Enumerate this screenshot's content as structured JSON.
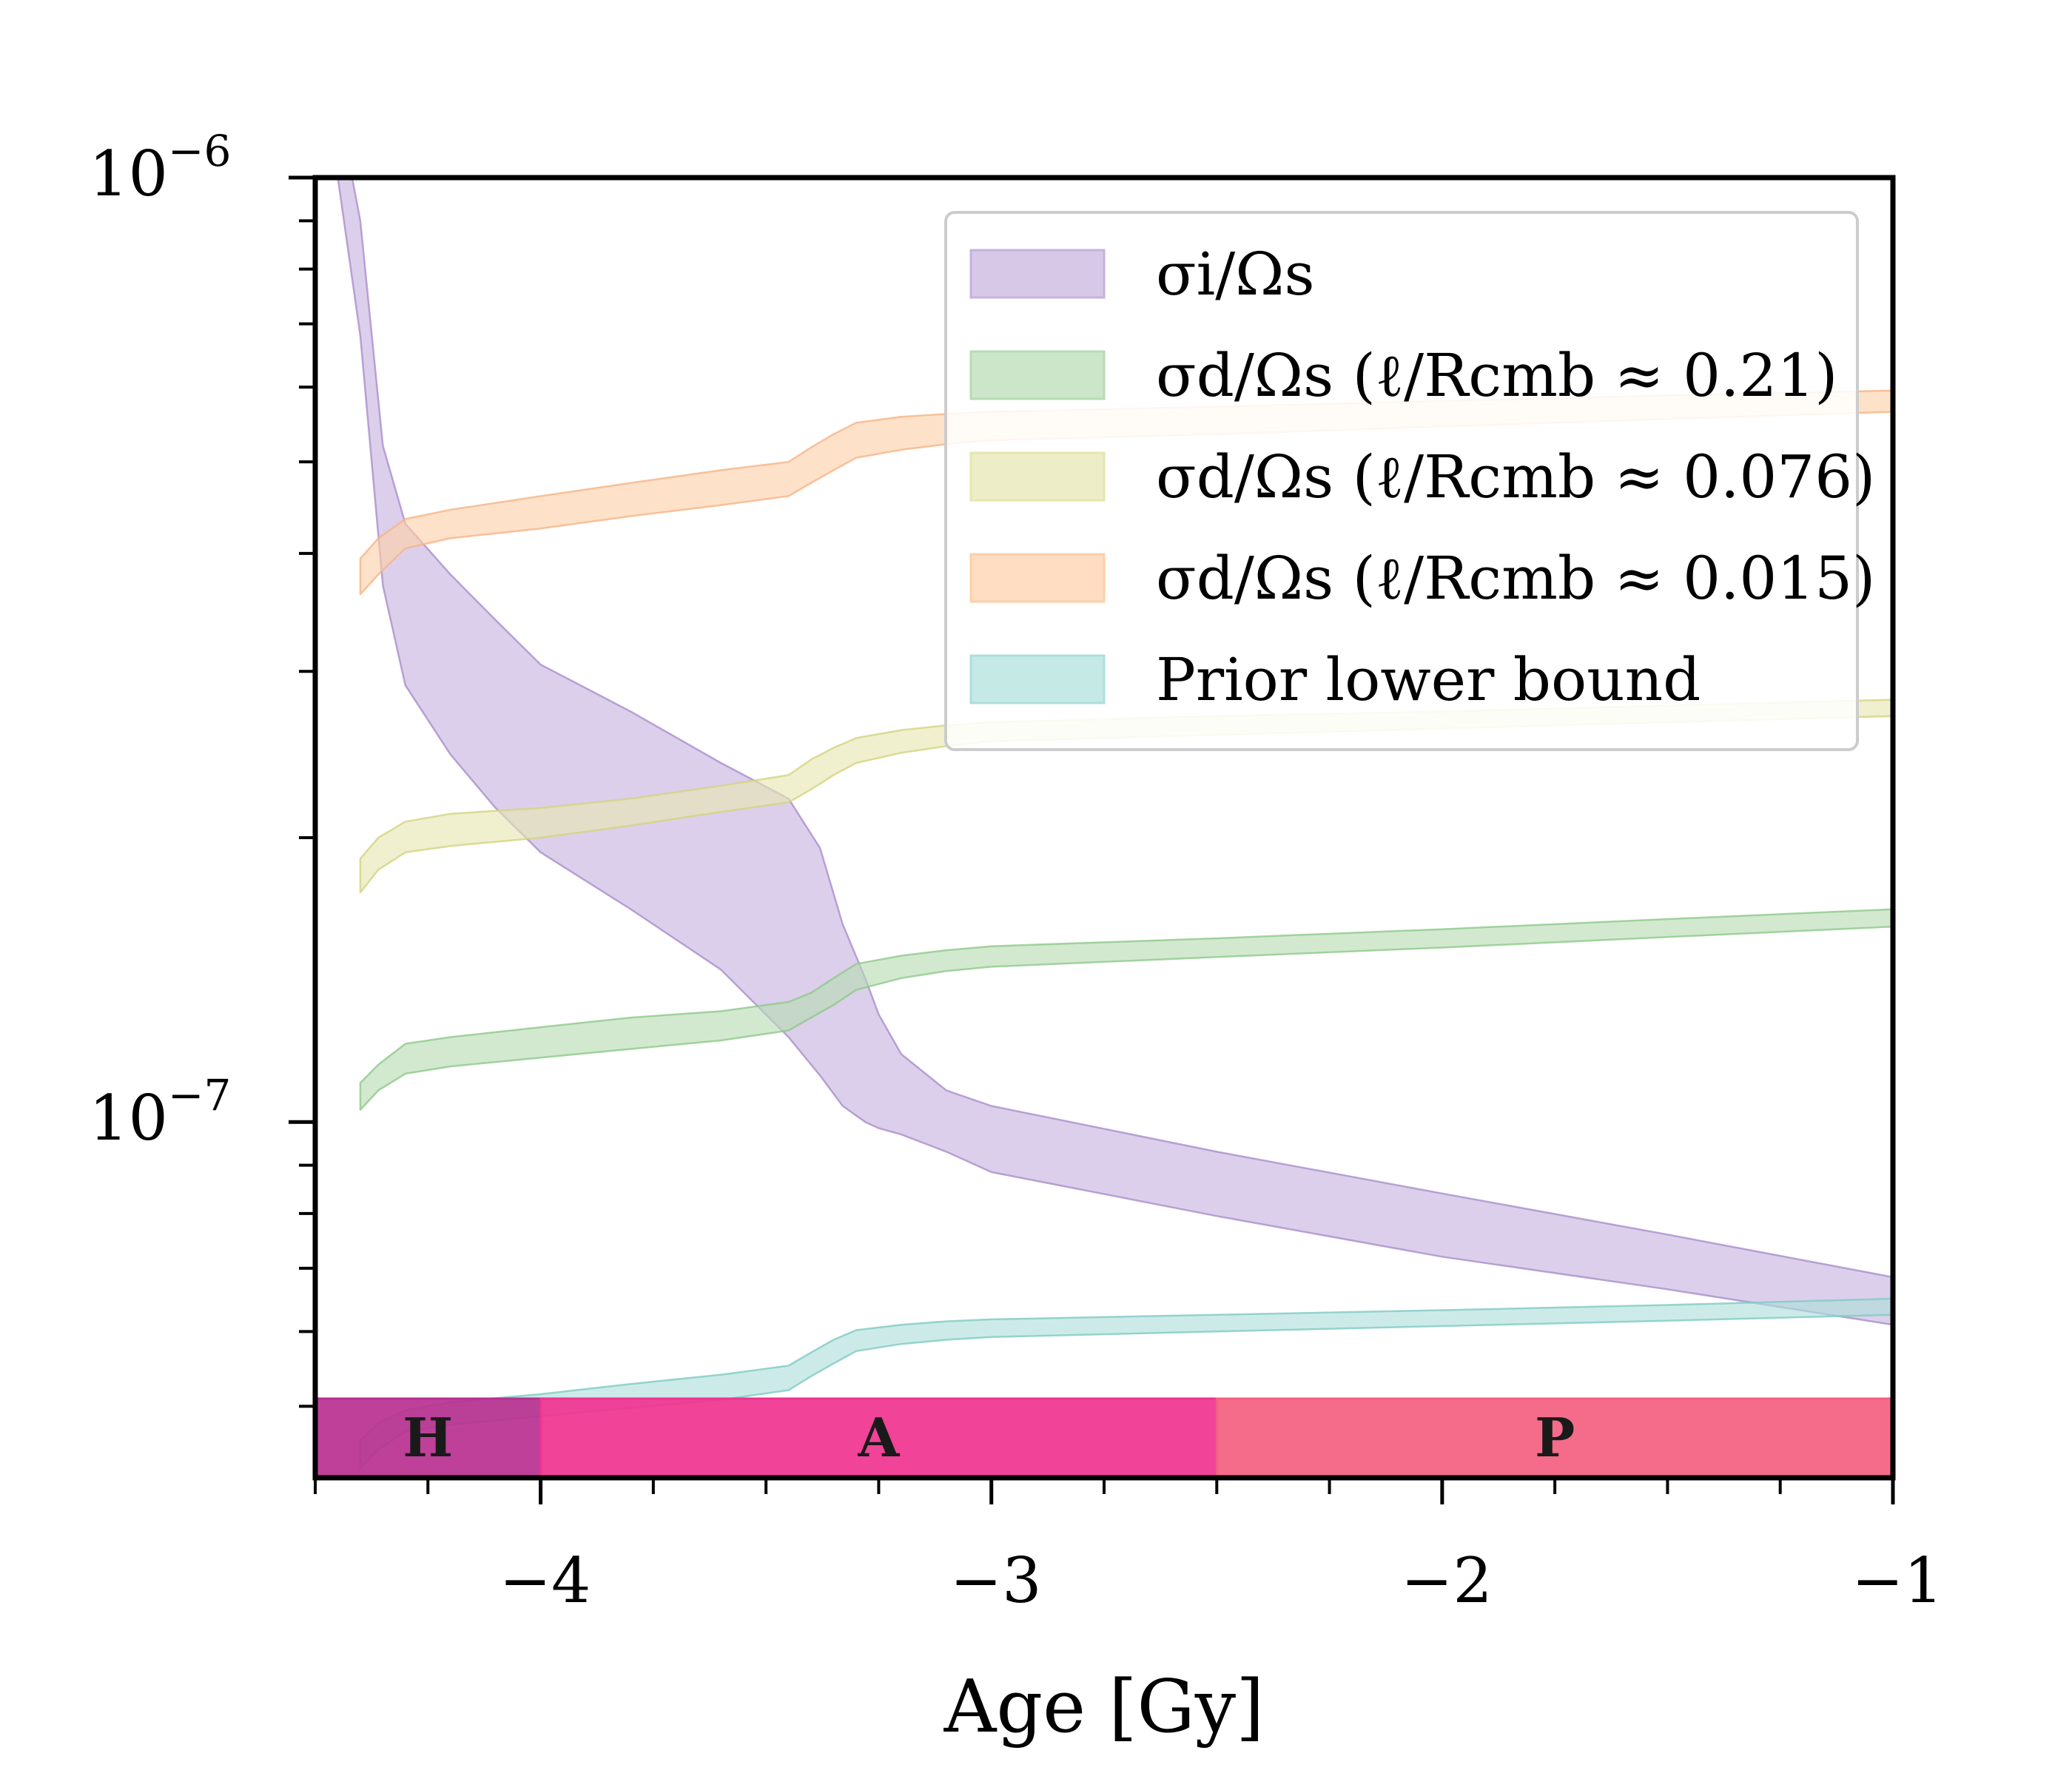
{
  "chart_data": {
    "type": "area",
    "title": "",
    "xlabel": "Age [Gy]",
    "ylabel": "",
    "xscale": "linear",
    "yscale": "log",
    "xlim": [
      -4.5,
      -1.0
    ],
    "ylim": [
      4.2e-08,
      1e-06
    ],
    "grid": false,
    "xticks": [
      {
        "value": -4,
        "label": "−4"
      },
      {
        "value": -3,
        "label": "−3"
      },
      {
        "value": -2,
        "label": "−2"
      },
      {
        "value": -1,
        "label": "−1"
      }
    ],
    "yticks": [
      {
        "value": 1e-06,
        "base": "10",
        "exp": "−6"
      },
      {
        "value": 1e-07,
        "base": "10",
        "exp": "−7"
      }
    ],
    "legend": {
      "position": "top-right",
      "entries": [
        {
          "label": "σi/Ωs",
          "color": "#c7b1de"
        },
        {
          "label": "σd/Ωs (ℓ/Rcmb ≈ 0.21)",
          "color": "#b6dcb3"
        },
        {
          "label": "σd/Ωs (ℓ/Rcmb ≈ 0.076)",
          "color": "#e6e6b1"
        },
        {
          "label": "σd/Ωs (ℓ/Rcmb ≈ 0.015)",
          "color": "#fdcfa8"
        },
        {
          "label": "Prior lower bound",
          "color": "#addfda"
        }
      ]
    },
    "series": [
      {
        "name": "σi/Ωs",
        "color": "#c7b1de",
        "edge": "#a98fcc",
        "x": [
          -4.49,
          -4.45,
          -4.4,
          -4.35,
          -4.3,
          -4.2,
          -4.1,
          -4.0,
          -3.8,
          -3.6,
          -3.45,
          -3.38,
          -3.33,
          -3.28,
          -3.25,
          -3.2,
          -3.1,
          -3.0,
          -2.5,
          -2.0,
          -1.5,
          -1.0
        ],
        "lower": [
          1.5e-06,
          1e-06,
          6.8e-07,
          3.7e-07,
          2.9e-07,
          2.45e-07,
          2.15e-07,
          1.93e-07,
          1.68e-07,
          1.45e-07,
          1.23e-07,
          1.12e-07,
          1.04e-07,
          1e-07,
          9.85e-08,
          9.7e-08,
          9.3e-08,
          8.85e-08,
          7.95e-08,
          7.2e-08,
          6.65e-08,
          6.1e-08
        ],
        "upper": [
          1.5e-06,
          1.2e-06,
          9e-07,
          5.2e-07,
          4.3e-07,
          3.8e-07,
          3.4e-07,
          3.05e-07,
          2.72e-07,
          2.4e-07,
          2.2e-07,
          1.95e-07,
          1.62e-07,
          1.42e-07,
          1.3e-07,
          1.18e-07,
          1.08e-07,
          1.04e-07,
          9.3e-08,
          8.4e-08,
          7.6e-08,
          6.85e-08
        ]
      },
      {
        "name": "σd/Ωs (ℓ/Rcmb ≈ 0.21)",
        "color": "#b6dcb3",
        "edge": "#8fc98a",
        "x": [
          -4.4,
          -4.36,
          -4.3,
          -4.2,
          -4.0,
          -3.8,
          -3.6,
          -3.45,
          -3.4,
          -3.35,
          -3.3,
          -3.2,
          -3.1,
          -3.0,
          -2.5,
          -2.0,
          -1.5,
          -1.0
        ],
        "lower": [
          1.03e-07,
          1.08e-07,
          1.125e-07,
          1.145e-07,
          1.17e-07,
          1.195e-07,
          1.22e-07,
          1.25e-07,
          1.29e-07,
          1.33e-07,
          1.38e-07,
          1.42e-07,
          1.445e-07,
          1.46e-07,
          1.495e-07,
          1.53e-07,
          1.57e-07,
          1.61e-07
        ],
        "upper": [
          1.1e-07,
          1.15e-07,
          1.21e-07,
          1.23e-07,
          1.26e-07,
          1.29e-07,
          1.31e-07,
          1.34e-07,
          1.37e-07,
          1.42e-07,
          1.47e-07,
          1.5e-07,
          1.52e-07,
          1.535e-07,
          1.565e-07,
          1.6e-07,
          1.64e-07,
          1.68e-07
        ]
      },
      {
        "name": "σd/Ωs (ℓ/Rcmb ≈ 0.076)",
        "color": "#e6e6b1",
        "edge": "#d3d37f",
        "x": [
          -4.4,
          -4.36,
          -4.3,
          -4.2,
          -4.0,
          -3.8,
          -3.6,
          -3.45,
          -3.4,
          -3.35,
          -3.3,
          -3.2,
          -3.1,
          -3.0,
          -2.5,
          -2.0,
          -1.5,
          -1.0
        ],
        "lower": [
          1.75e-07,
          1.85e-07,
          1.93e-07,
          1.96e-07,
          2e-07,
          2.06e-07,
          2.13e-07,
          2.18e-07,
          2.25e-07,
          2.33e-07,
          2.4e-07,
          2.46e-07,
          2.5e-07,
          2.53e-07,
          2.57e-07,
          2.61e-07,
          2.65e-07,
          2.69e-07
        ],
        "upper": [
          1.9e-07,
          2e-07,
          2.08e-07,
          2.12e-07,
          2.15e-07,
          2.2e-07,
          2.27e-07,
          2.33e-07,
          2.42e-07,
          2.49e-07,
          2.55e-07,
          2.6e-07,
          2.63e-07,
          2.65e-07,
          2.69e-07,
          2.72e-07,
          2.76e-07,
          2.8e-07
        ]
      },
      {
        "name": "σd/Ωs (ℓ/Rcmb ≈ 0.015)",
        "color": "#fdcfa8",
        "edge": "#f6b487",
        "x": [
          -4.4,
          -4.36,
          -4.3,
          -4.2,
          -4.0,
          -3.8,
          -3.6,
          -3.45,
          -3.4,
          -3.35,
          -3.3,
          -3.2,
          -3.1,
          -3.0,
          -2.5,
          -2.0,
          -1.5,
          -1.0
        ],
        "lower": [
          3.62e-07,
          3.8e-07,
          4.05e-07,
          4.15e-07,
          4.25e-07,
          4.38e-07,
          4.5e-07,
          4.6e-07,
          4.75e-07,
          4.9e-07,
          5.05e-07,
          5.15e-07,
          5.22e-07,
          5.27e-07,
          5.35e-07,
          5.45e-07,
          5.55e-07,
          5.65e-07
        ],
        "upper": [
          3.95e-07,
          4.15e-07,
          4.35e-07,
          4.45e-07,
          4.6e-07,
          4.75e-07,
          4.9e-07,
          5e-07,
          5.18e-07,
          5.35e-07,
          5.5e-07,
          5.58e-07,
          5.62e-07,
          5.65e-07,
          5.72e-07,
          5.8e-07,
          5.88e-07,
          5.95e-07
        ]
      },
      {
        "name": "Prior lower bound",
        "color": "#addfda",
        "edge": "#7fcbc3",
        "x": [
          -4.4,
          -4.36,
          -4.3,
          -4.2,
          -4.0,
          -3.8,
          -3.6,
          -3.45,
          -3.4,
          -3.35,
          -3.3,
          -3.2,
          -3.1,
          -3.0,
          -2.5,
          -2.0,
          -1.5,
          -1.0
        ],
        "lower": [
          4.3e-08,
          4.5e-08,
          4.7e-08,
          4.78e-08,
          4.88e-08,
          4.98e-08,
          5.08e-08,
          5.2e-08,
          5.38e-08,
          5.55e-08,
          5.72e-08,
          5.82e-08,
          5.88e-08,
          5.92e-08,
          6e-08,
          6.08e-08,
          6.16e-08,
          6.25e-08
        ],
        "upper": [
          4.6e-08,
          4.8e-08,
          4.95e-08,
          5.05e-08,
          5.15e-08,
          5.28e-08,
          5.4e-08,
          5.52e-08,
          5.7e-08,
          5.88e-08,
          6.02e-08,
          6.1e-08,
          6.15e-08,
          6.18e-08,
          6.25e-08,
          6.32e-08,
          6.4e-08,
          6.5e-08
        ]
      }
    ],
    "eras": [
      {
        "label": "H",
        "start": -4.5,
        "end": -4.0,
        "color": "#b8308f"
      },
      {
        "label": "A",
        "start": -4.0,
        "end": -2.5,
        "color": "#f0338f"
      },
      {
        "label": "P",
        "start": -2.5,
        "end": -1.0,
        "color": "#f45f80"
      }
    ]
  }
}
